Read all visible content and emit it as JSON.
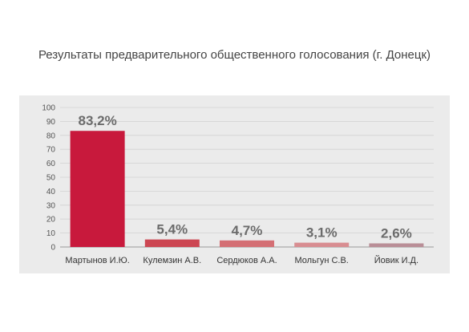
{
  "chart_data": {
    "type": "bar",
    "title": "Результаты предварительного общественного голосования (г. Донецк)",
    "xlabel": "",
    "ylabel": "",
    "categories": [
      "Мартынов И.Ю.",
      "Кулемзин А.В.",
      "Сердюков А.А.",
      "Мольгун С.В.",
      "Йовик И.Д."
    ],
    "values": [
      83.2,
      5.4,
      4.7,
      3.1,
      2.6
    ],
    "data_labels": [
      "83,2%",
      "5,4%",
      "4,7%",
      "3,1%",
      "2,6%"
    ],
    "bar_colors": [
      "#c8193c",
      "#cc4652",
      "#d46f74",
      "#d88d91",
      "#b98e97"
    ],
    "ylim": [
      0,
      100
    ],
    "yticks": [
      0,
      10,
      20,
      30,
      40,
      50,
      60,
      70,
      80,
      90,
      100
    ],
    "grid": true,
    "legend": "none",
    "background_color": "#ebebeb"
  }
}
